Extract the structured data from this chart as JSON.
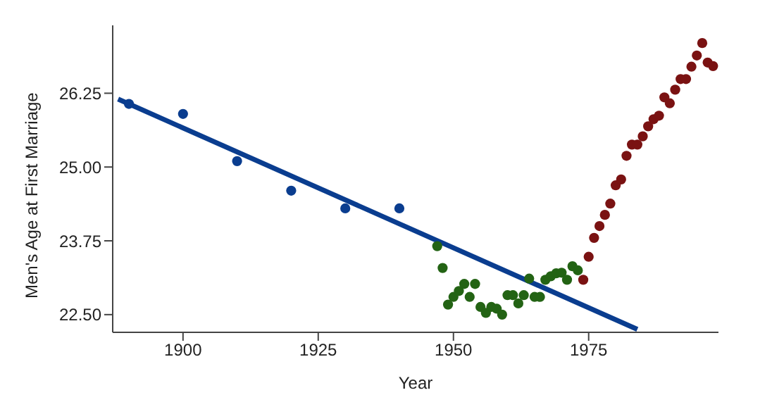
{
  "chart_data": {
    "type": "scatter",
    "xlabel": "Year",
    "ylabel": "Men's Age at First Marriage",
    "xlim": [
      1887,
      1999
    ],
    "xticks": [
      1900,
      1925,
      1950,
      1975
    ],
    "ylim": [
      22.2,
      27.4
    ],
    "yticks": [
      {
        "value": 22.5,
        "label": "22.50"
      },
      {
        "value": 23.75,
        "label": "23.75"
      },
      {
        "value": 25,
        "label": "25.00"
      },
      {
        "value": 26.25,
        "label": "26.25"
      }
    ],
    "grid": false,
    "marker": "circle",
    "series": [
      {
        "color": "#0a3d8f",
        "x": [
          1890,
          1900,
          1910,
          1920,
          1930,
          1940
        ],
        "values": [
          26.07,
          25.9,
          25.1,
          24.6,
          24.3,
          24.3
        ]
      },
      {
        "color": "#236314",
        "x": [
          1947,
          1948,
          1949,
          1950,
          1951,
          1952,
          1953,
          1954,
          1955,
          1956,
          1957,
          1958,
          1959,
          1960,
          1961,
          1962,
          1963,
          1964,
          1965,
          1966,
          1967,
          1968,
          1969,
          1970,
          1971,
          1972,
          1973
        ],
        "values": [
          23.66,
          23.29,
          22.67,
          22.8,
          22.9,
          23.02,
          22.8,
          23.02,
          22.63,
          22.53,
          22.63,
          22.6,
          22.5,
          22.83,
          22.83,
          22.69,
          22.83,
          23.11,
          22.8,
          22.8,
          23.09,
          23.15,
          23.2,
          23.21,
          23.09,
          23.32,
          23.25
        ]
      },
      {
        "color": "#7a1212",
        "x": [
          1974,
          1975,
          1976,
          1977,
          1978,
          1979,
          1980,
          1981,
          1982,
          1983,
          1984,
          1985,
          1986,
          1987,
          1988,
          1989,
          1990,
          1991,
          1992,
          1993,
          1994,
          1995,
          1996,
          1997,
          1998
        ],
        "values": [
          23.09,
          23.48,
          23.8,
          24.0,
          24.19,
          24.38,
          24.69,
          24.79,
          25.19,
          25.38,
          25.38,
          25.52,
          25.69,
          25.81,
          25.87,
          26.18,
          26.08,
          26.31,
          26.49,
          26.49,
          26.7,
          26.89,
          27.1,
          26.77,
          26.71
        ]
      },
      {
        "type": "line",
        "marker": "none",
        "color": "#0a3d8f",
        "x": [
          1888,
          1984
        ],
        "values": [
          26.15,
          22.25
        ]
      }
    ]
  }
}
